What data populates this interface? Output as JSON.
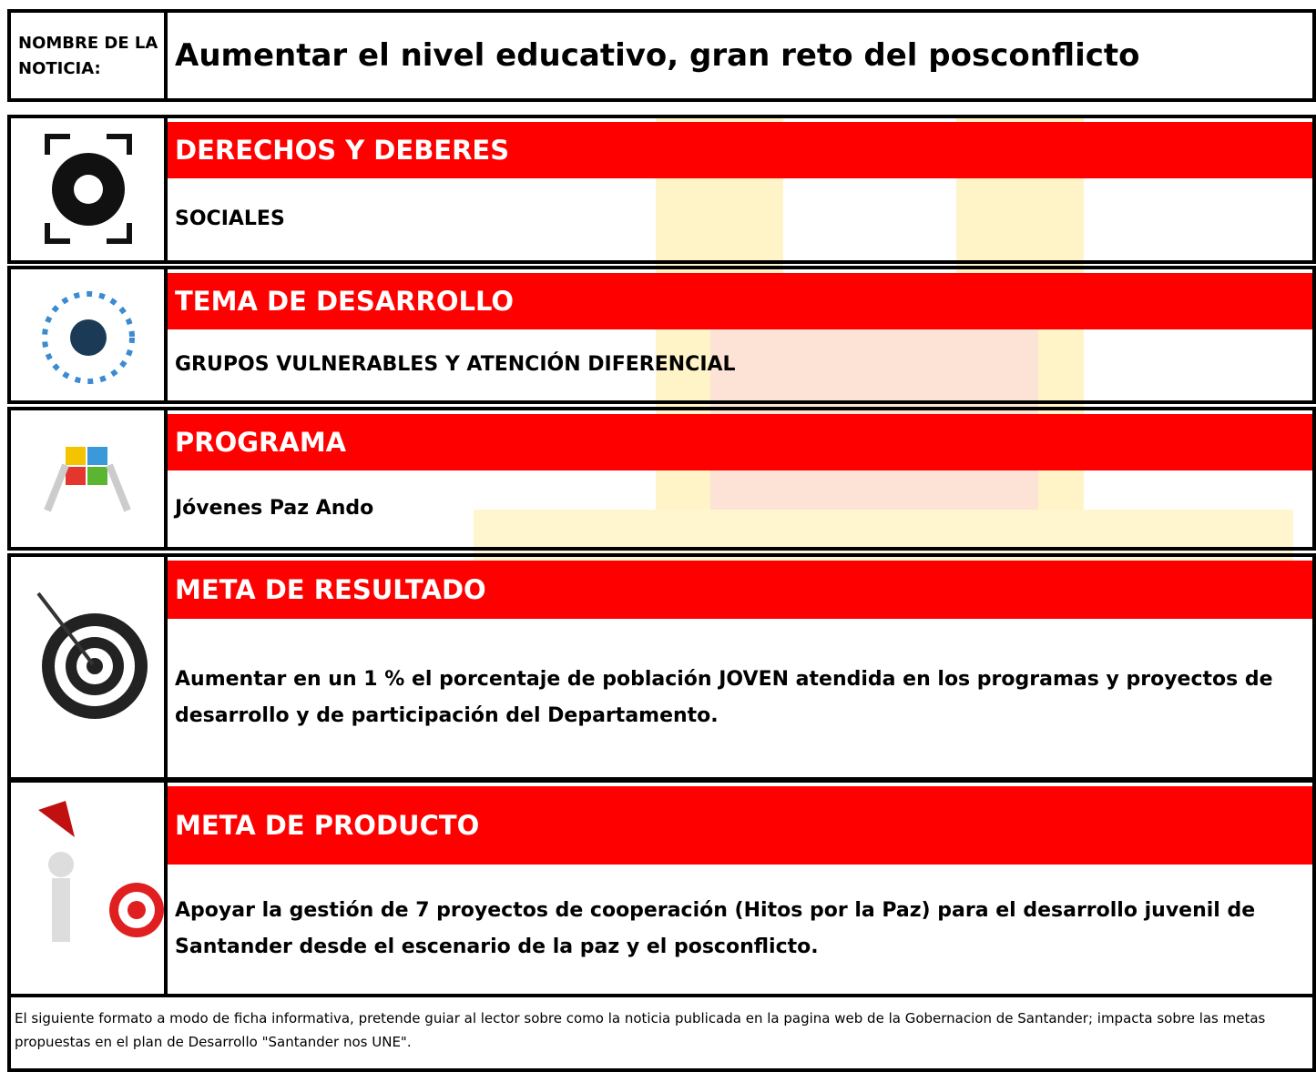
{
  "header": {
    "label": "NOMBRE DE LA NOTICIA:",
    "title": "Aumentar el nivel educativo, gran reto del posconflicto"
  },
  "sections": [
    {
      "heading": "DERECHOS Y DEBERES",
      "content": "SOCIALES"
    },
    {
      "heading": "TEMA DE DESARROLLO",
      "content": "GRUPOS VULNERABLES Y ATENCIÓN DIFERENCIAL"
    },
    {
      "heading": "PROGRAMA",
      "content": "Jóvenes Paz Ando"
    },
    {
      "heading": "META DE RESULTADO",
      "content": "Aumentar en un 1 % el porcentaje de población JOVEN atendida en los programas y proyectos de desarrollo y de participación del Departamento."
    },
    {
      "heading": "META DE PRODUCTO",
      "content": "Apoyar la gestión de 7 proyectos de cooperación (Hitos por la Paz) para el desarrollo juvenil de Santander desde el escenario de la paz y el posconflicto."
    }
  ],
  "footer": {
    "note": "El siguiente formato a modo de ficha informativa, pretende guiar al lector sobre como la noticia publicada en la pagina web de la Gobernacion de Santander; impacta sobre las metas propuestas en el plan de Desarrollo \"Santander nos UNE\"."
  }
}
